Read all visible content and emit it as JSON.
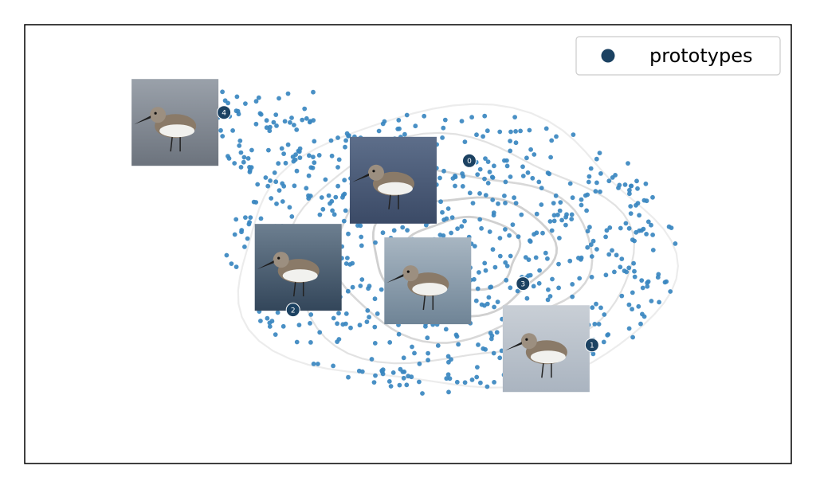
{
  "chart_data": {
    "type": "scatter",
    "title": "",
    "xlabel": "",
    "ylabel": "",
    "axes_visible": false,
    "grid": false,
    "legend": {
      "placement": "top-right",
      "entries": [
        "prototypes"
      ]
    },
    "colors": {
      "points": "#3a87c0",
      "prototype_marker": "#1c4262",
      "contour": "#d8d8d8",
      "frame": "#000000"
    },
    "series": [
      {
        "name": "prototypes",
        "kind": "prototype markers",
        "count": 5
      }
    ],
    "prototypes": [
      {
        "label": "0",
        "x": 0.58,
        "y": 0.69,
        "image": "dunlin-breeding-plumage-foraging-icon"
      },
      {
        "label": "1",
        "x": 0.74,
        "y": 0.27,
        "image": "small-sandpipers-on-beach-icon"
      },
      {
        "label": "2",
        "x": 0.35,
        "y": 0.35,
        "image": "dunlin-standing-in-water-icon"
      },
      {
        "label": "3",
        "x": 0.65,
        "y": 0.41,
        "image": "dunlin-winter-plumage-wading-icon"
      },
      {
        "label": "4",
        "x": 0.26,
        "y": 0.8,
        "image": "dunlin-held-in-hand-icon"
      }
    ],
    "embedding_points": {
      "count": 700,
      "distribution": "elliptical cloud with density contours"
    }
  }
}
